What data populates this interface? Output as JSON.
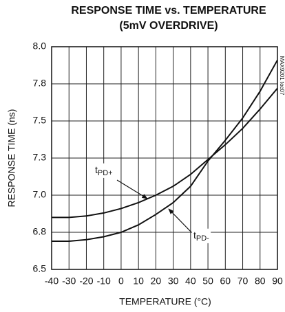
{
  "chart_data": {
    "type": "line",
    "title": [
      "RESPONSE TIME vs. TEMPERATURE",
      "(5mV OVERDRIVE)"
    ],
    "x_label": "TEMPERATURE (°C)",
    "y_label": "RESPONSE TIME (ns)",
    "watermark": "MAX9201 toc07",
    "x": [
      -40,
      -30,
      -20,
      -10,
      0,
      10,
      20,
      30,
      40,
      50,
      60,
      70,
      80,
      90
    ],
    "series": [
      {
        "name": "tPD+",
        "color": "#111111",
        "values": [
          6.85,
          6.85,
          6.86,
          6.88,
          6.91,
          6.95,
          7.0,
          7.06,
          7.14,
          7.24,
          7.34,
          7.45,
          7.58,
          7.72
        ]
      },
      {
        "name": "tPD-",
        "color": "#111111",
        "values": [
          6.69,
          6.69,
          6.7,
          6.72,
          6.75,
          6.8,
          6.87,
          6.95,
          7.06,
          7.23,
          7.37,
          7.52,
          7.7,
          7.91
        ]
      }
    ],
    "xlim": [
      -40,
      90
    ],
    "xticks": [
      -40,
      -30,
      -20,
      -10,
      0,
      10,
      20,
      30,
      40,
      50,
      60,
      70,
      80,
      90
    ],
    "ylim": [
      6.5,
      8.0
    ],
    "yticks": [
      {
        "value": 6.5,
        "label": "6.5"
      },
      {
        "value": 6.75,
        "label": "6.8"
      },
      {
        "value": 7.0,
        "label": "7.0"
      },
      {
        "value": 7.25,
        "label": "7.3"
      },
      {
        "value": 7.5,
        "label": "7.5"
      },
      {
        "value": 7.75,
        "label": "7.8"
      },
      {
        "value": 8.0,
        "label": "8.0"
      }
    ],
    "grid": true
  }
}
